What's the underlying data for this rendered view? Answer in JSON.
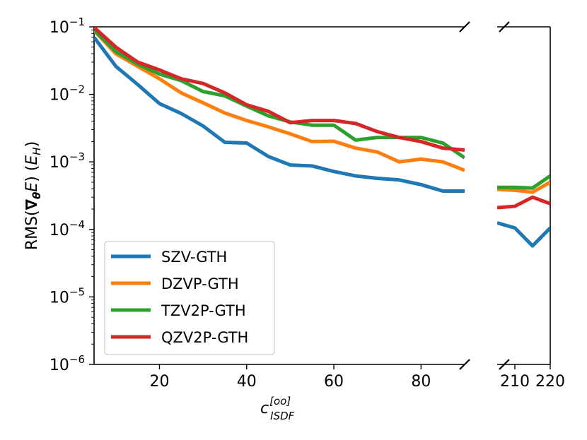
{
  "chart_data": {
    "type": "line",
    "yscale": "log",
    "ylim": [
      1e-06,
      0.1
    ],
    "ylabel": "RMS(∇θE) (E_H)",
    "xlabel": "c_ISDF^[oo]",
    "y_tick_labels": [
      {
        "base": "10",
        "exp": "−1"
      },
      {
        "base": "10",
        "exp": "−2"
      },
      {
        "base": "10",
        "exp": "−3"
      },
      {
        "base": "10",
        "exp": "−4"
      },
      {
        "base": "10",
        "exp": "−5"
      },
      {
        "base": "10",
        "exp": "−6"
      }
    ],
    "y_tick_values": [
      0.1,
      0.01,
      0.001,
      0.0001,
      1e-05,
      1e-06
    ],
    "x_panels": [
      {
        "xlim": [
          5,
          90
        ],
        "ticks": [
          20,
          40,
          60,
          80
        ],
        "tick_labels": [
          "20",
          "40",
          "60",
          "80"
        ]
      },
      {
        "xlim": [
          205,
          220
        ],
        "ticks": [
          210,
          220
        ],
        "tick_labels": [
          "210",
          "220"
        ]
      }
    ],
    "legend_position": "lower-left",
    "series": [
      {
        "name": "SZV-GTH",
        "color": "#1f77b4",
        "x": [
          5,
          10,
          15,
          20,
          25,
          30,
          35,
          40,
          45,
          50,
          55,
          60,
          65,
          70,
          75,
          80,
          85,
          90
        ],
        "values": [
          0.07,
          0.026,
          0.014,
          0.0073,
          0.0052,
          0.0034,
          0.00195,
          0.0019,
          0.0012,
          0.0009,
          0.00087,
          0.00072,
          0.00062,
          0.00057,
          0.00054,
          0.00046,
          0.00037,
          0.00037
        ],
        "x2": [
          205,
          210,
          215,
          220
        ],
        "values2": [
          0.000125,
          0.000105,
          5.7e-05,
          0.000105
        ]
      },
      {
        "name": "DZVP-GTH",
        "color": "#ff7f0e",
        "x": [
          5,
          10,
          15,
          20,
          25,
          30,
          35,
          40,
          45,
          50,
          55,
          60,
          65,
          70,
          75,
          80,
          85,
          90
        ],
        "values": [
          0.088,
          0.04,
          0.026,
          0.017,
          0.0105,
          0.0075,
          0.0053,
          0.0041,
          0.0033,
          0.0026,
          0.002,
          0.00202,
          0.0016,
          0.0014,
          0.001,
          0.0011,
          0.001,
          0.00075
        ],
        "x2": [
          205,
          210,
          215,
          220
        ],
        "values2": [
          0.00039,
          0.00038,
          0.000355,
          0.0005
        ]
      },
      {
        "name": "TZV2P-GTH",
        "color": "#2ca02c",
        "x": [
          5,
          10,
          15,
          20,
          25,
          30,
          35,
          40,
          45,
          50,
          55,
          60,
          65,
          70,
          75,
          80,
          85,
          90
        ],
        "values": [
          0.09,
          0.043,
          0.028,
          0.02,
          0.016,
          0.011,
          0.0095,
          0.0067,
          0.0048,
          0.0039,
          0.0035,
          0.0035,
          0.0021,
          0.0023,
          0.0023,
          0.0023,
          0.0019,
          0.00115
        ],
        "x2": [
          205,
          210,
          215,
          220
        ],
        "values2": [
          0.00042,
          0.00042,
          0.00041,
          0.00062
        ]
      },
      {
        "name": "QZV2P-GTH",
        "color": "#d62728",
        "x": [
          5,
          10,
          15,
          20,
          25,
          30,
          35,
          40,
          45,
          50,
          55,
          60,
          65,
          70,
          75,
          80,
          85,
          90
        ],
        "values": [
          0.098,
          0.05,
          0.03,
          0.023,
          0.017,
          0.0145,
          0.0105,
          0.007,
          0.0056,
          0.0038,
          0.0041,
          0.0041,
          0.0037,
          0.0028,
          0.0023,
          0.002,
          0.0016,
          0.0015
        ],
        "x2": [
          205,
          210,
          215,
          220
        ],
        "values2": [
          0.00021,
          0.00022,
          0.0003,
          0.00024
        ]
      }
    ]
  }
}
